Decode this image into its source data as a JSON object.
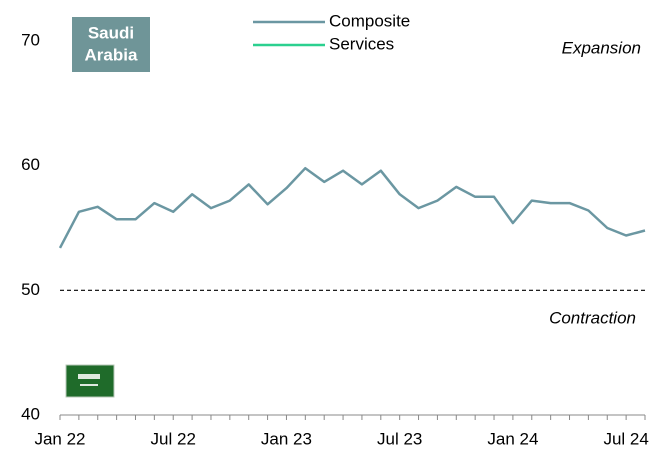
{
  "chart_data": {
    "type": "line",
    "badge": [
      "Saudi",
      "Arabia"
    ],
    "annotations": [
      "Expansion",
      "Contraction"
    ],
    "reference_line": 50,
    "categories": [
      "Jan 22",
      null,
      null,
      null,
      null,
      null,
      "Jul 22",
      null,
      null,
      null,
      null,
      null,
      "Jan 23",
      null,
      null,
      null,
      null,
      null,
      "Jul 23",
      null,
      null,
      null,
      null,
      null,
      "Jan 24",
      null,
      null,
      null,
      null,
      null,
      "Jul 24",
      null
    ],
    "series": [
      {
        "name": "Composite",
        "color": "#6b97a2",
        "values": [
          53.4,
          56.3,
          56.7,
          55.7,
          55.7,
          57.0,
          56.3,
          57.7,
          56.6,
          57.2,
          58.5,
          56.9,
          58.2,
          59.8,
          58.7,
          59.6,
          58.5,
          59.6,
          57.7,
          56.6,
          57.2,
          58.3,
          57.5,
          57.5,
          55.4,
          57.2,
          57.0,
          57.0,
          56.4,
          55.0,
          54.4,
          54.8
        ]
      },
      {
        "name": "Services",
        "color": "#2bd08f",
        "values": [
          null,
          null,
          null,
          null,
          null,
          null,
          null,
          null,
          null,
          null,
          null,
          null,
          null,
          null,
          null,
          null,
          null,
          null,
          null,
          null,
          null,
          null,
          null,
          null,
          null,
          null,
          null,
          null,
          null,
          null,
          null,
          null
        ]
      }
    ],
    "ylim": [
      40,
      70
    ],
    "yticks": [
      40,
      50,
      60,
      70
    ],
    "grid": false
  }
}
